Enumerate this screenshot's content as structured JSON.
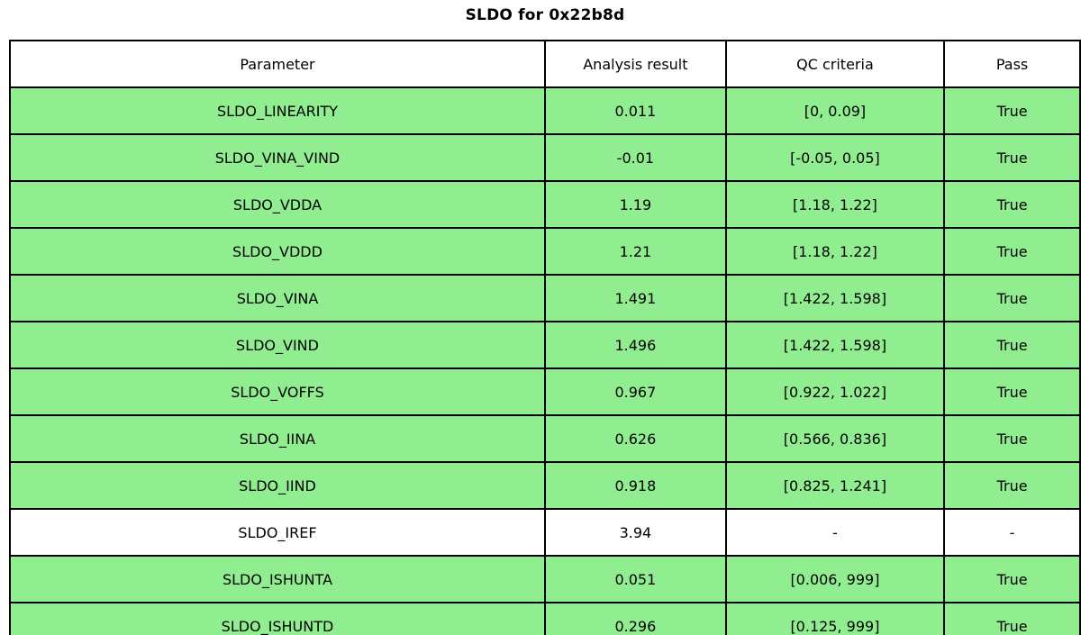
{
  "title": "SLDO for 0x22b8d",
  "table": {
    "columns": [
      "Parameter",
      "Analysis result",
      "QC criteria",
      "Pass"
    ],
    "rows": [
      {
        "parameter": "SLDO_LINEARITY",
        "result": "0.011",
        "criteria": "[0, 0.09]",
        "pass": "True",
        "highlight": true
      },
      {
        "parameter": "SLDO_VINA_VIND",
        "result": "-0.01",
        "criteria": "[-0.05, 0.05]",
        "pass": "True",
        "highlight": true
      },
      {
        "parameter": "SLDO_VDDA",
        "result": "1.19",
        "criteria": "[1.18, 1.22]",
        "pass": "True",
        "highlight": true
      },
      {
        "parameter": "SLDO_VDDD",
        "result": "1.21",
        "criteria": "[1.18, 1.22]",
        "pass": "True",
        "highlight": true
      },
      {
        "parameter": "SLDO_VINA",
        "result": "1.491",
        "criteria": "[1.422, 1.598]",
        "pass": "True",
        "highlight": true
      },
      {
        "parameter": "SLDO_VIND",
        "result": "1.496",
        "criteria": "[1.422, 1.598]",
        "pass": "True",
        "highlight": true
      },
      {
        "parameter": "SLDO_VOFFS",
        "result": "0.967",
        "criteria": "[0.922, 1.022]",
        "pass": "True",
        "highlight": true
      },
      {
        "parameter": "SLDO_IINA",
        "result": "0.626",
        "criteria": "[0.566, 0.836]",
        "pass": "True",
        "highlight": true
      },
      {
        "parameter": "SLDO_IIND",
        "result": "0.918",
        "criteria": "[0.825, 1.241]",
        "pass": "True",
        "highlight": true
      },
      {
        "parameter": "SLDO_IREF",
        "result": "3.94",
        "criteria": "-",
        "pass": "-",
        "highlight": false
      },
      {
        "parameter": "SLDO_ISHUNTA",
        "result": "0.051",
        "criteria": "[0.006, 999]",
        "pass": "True",
        "highlight": true
      },
      {
        "parameter": "SLDO_ISHUNTD",
        "result": "0.296",
        "criteria": "[0.125, 999]",
        "pass": "True",
        "highlight": true
      }
    ]
  },
  "colors": {
    "pass_green": "#90EE90",
    "row_white": "#FFFFFF",
    "border": "#000000",
    "background": "#FFFFFF"
  },
  "chart_data": {
    "type": "table",
    "title": "SLDO for 0x22b8d",
    "columns": [
      "Parameter",
      "Analysis result",
      "QC criteria",
      "Pass"
    ],
    "rows": [
      [
        "SLDO_LINEARITY",
        0.011,
        "[0, 0.09]",
        "True"
      ],
      [
        "SLDO_VINA_VIND",
        -0.01,
        "[-0.05, 0.05]",
        "True"
      ],
      [
        "SLDO_VDDA",
        1.19,
        "[1.18, 1.22]",
        "True"
      ],
      [
        "SLDO_VDDD",
        1.21,
        "[1.18, 1.22]",
        "True"
      ],
      [
        "SLDO_VINA",
        1.491,
        "[1.422, 1.598]",
        "True"
      ],
      [
        "SLDO_VIND",
        1.496,
        "[1.422, 1.598]",
        "True"
      ],
      [
        "SLDO_VOFFS",
        0.967,
        "[0.922, 1.022]",
        "True"
      ],
      [
        "SLDO_IINA",
        0.626,
        "[0.566, 0.836]",
        "True"
      ],
      [
        "SLDO_IIND",
        0.918,
        "[0.825, 1.241]",
        "True"
      ],
      [
        "SLDO_IREF",
        3.94,
        "-",
        "-"
      ],
      [
        "SLDO_ISHUNTA",
        0.051,
        "[0.006, 999]",
        "True"
      ],
      [
        "SLDO_ISHUNTD",
        0.296,
        "[0.125, 999]",
        "True"
      ]
    ],
    "layout": {
      "highlight_color": "#90EE90",
      "unhighlighted_rows": [
        "SLDO_IREF"
      ],
      "grid": true,
      "legend": false
    }
  }
}
